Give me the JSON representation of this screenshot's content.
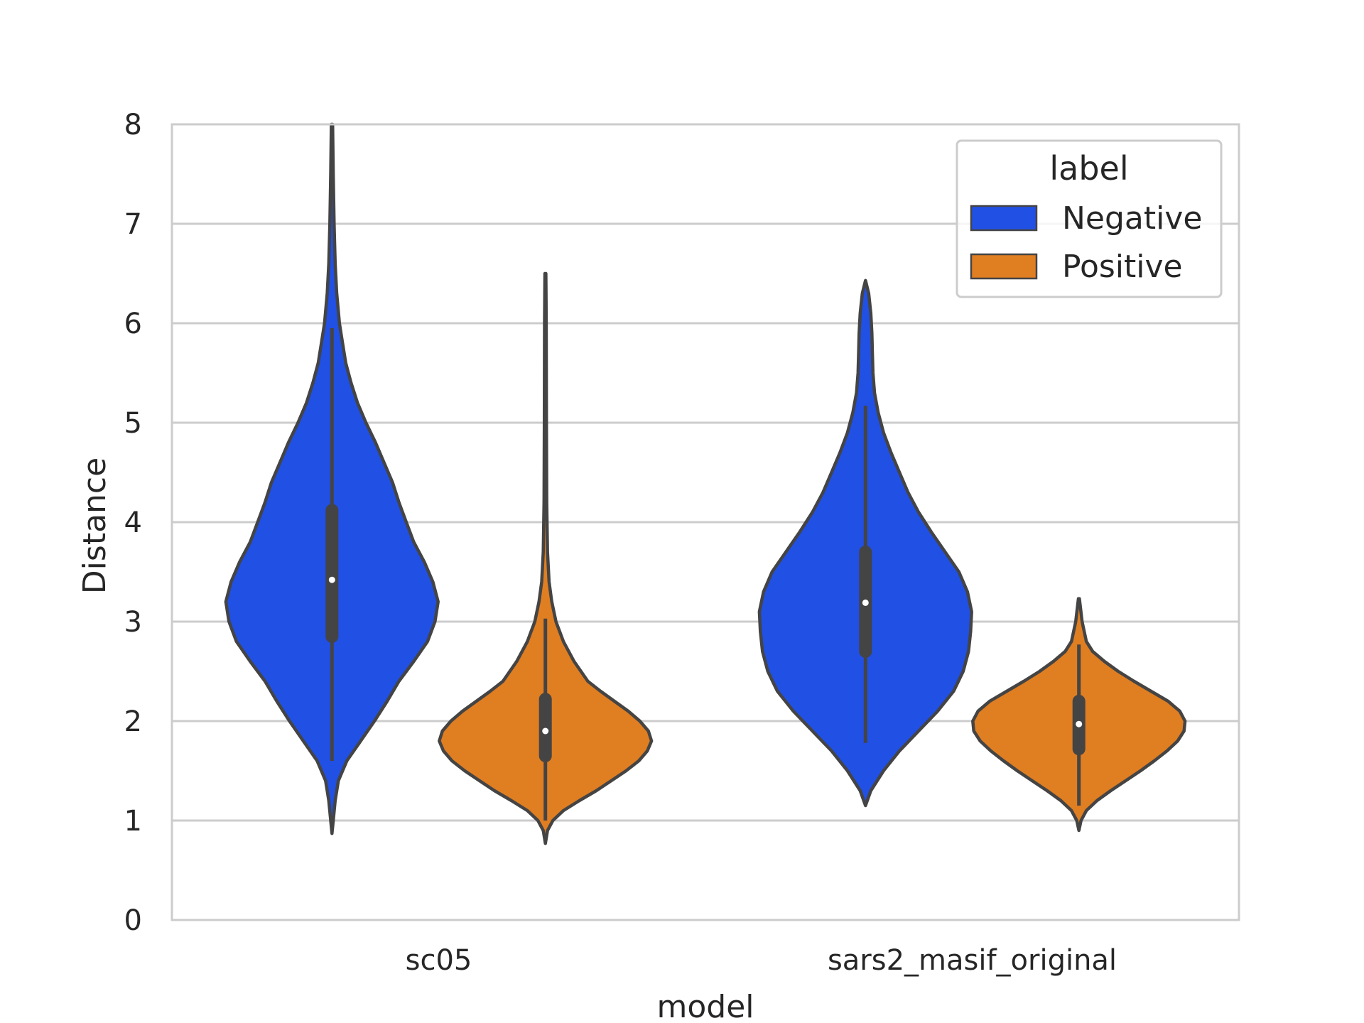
{
  "chart_data": {
    "type": "violin",
    "title": "",
    "xlabel": "model",
    "ylabel": "Distance",
    "ylim": [
      0,
      8
    ],
    "yticks": [
      "0",
      "1",
      "2",
      "3",
      "4",
      "5",
      "6",
      "7",
      "8"
    ],
    "categories": [
      "sc05",
      "sars2_masif_original"
    ],
    "grid": "horizontal",
    "legend": {
      "title": "label",
      "placement": "top-right",
      "entries": [
        {
          "name": "Negative",
          "color": "#2150e4"
        },
        {
          "name": "Positive",
          "color": "#e07e22"
        }
      ]
    },
    "series": [
      {
        "name": "Negative",
        "color": "#2150e4",
        "violins": [
          {
            "category": "sc05",
            "min": 0.87,
            "max": 8.0,
            "q1": 2.85,
            "median": 3.42,
            "q3": 4.12,
            "whisker_low": 1.6,
            "whisker_high": 5.95,
            "density": [
              [
                0.87,
                0.0
              ],
              [
                1.0,
                0.012
              ],
              [
                1.2,
                0.03
              ],
              [
                1.4,
                0.06
              ],
              [
                1.6,
                0.14
              ],
              [
                1.8,
                0.27
              ],
              [
                2.0,
                0.4
              ],
              [
                2.2,
                0.52
              ],
              [
                2.4,
                0.63
              ],
              [
                2.6,
                0.77
              ],
              [
                2.8,
                0.9
              ],
              [
                3.0,
                0.97
              ],
              [
                3.2,
                1.0
              ],
              [
                3.4,
                0.95
              ],
              [
                3.6,
                0.87
              ],
              [
                3.8,
                0.77
              ],
              [
                4.0,
                0.7
              ],
              [
                4.2,
                0.63
              ],
              [
                4.4,
                0.57
              ],
              [
                4.6,
                0.49
              ],
              [
                4.8,
                0.41
              ],
              [
                5.0,
                0.32
              ],
              [
                5.2,
                0.24
              ],
              [
                5.4,
                0.18
              ],
              [
                5.6,
                0.13
              ],
              [
                5.8,
                0.1
              ],
              [
                6.0,
                0.07
              ],
              [
                6.3,
                0.045
              ],
              [
                6.6,
                0.03
              ],
              [
                7.0,
                0.02
              ],
              [
                7.5,
                0.012
              ],
              [
                8.0,
                0.006
              ]
            ]
          },
          {
            "category": "sars2_masif_original",
            "min": 1.15,
            "max": 6.43,
            "q1": 2.7,
            "median": 3.19,
            "q3": 3.7,
            "whisker_low": 1.78,
            "whisker_high": 5.17,
            "density": [
              [
                1.15,
                0.0
              ],
              [
                1.3,
                0.05
              ],
              [
                1.5,
                0.17
              ],
              [
                1.7,
                0.32
              ],
              [
                1.9,
                0.5
              ],
              [
                2.1,
                0.68
              ],
              [
                2.3,
                0.83
              ],
              [
                2.5,
                0.92
              ],
              [
                2.7,
                0.97
              ],
              [
                2.9,
                0.99
              ],
              [
                3.1,
                1.0
              ],
              [
                3.3,
                0.96
              ],
              [
                3.5,
                0.88
              ],
              [
                3.7,
                0.75
              ],
              [
                3.9,
                0.62
              ],
              [
                4.1,
                0.5
              ],
              [
                4.3,
                0.4
              ],
              [
                4.5,
                0.32
              ],
              [
                4.7,
                0.24
              ],
              [
                4.9,
                0.17
              ],
              [
                5.1,
                0.12
              ],
              [
                5.3,
                0.085
              ],
              [
                5.5,
                0.07
              ],
              [
                5.7,
                0.065
              ],
              [
                5.9,
                0.06
              ],
              [
                6.1,
                0.05
              ],
              [
                6.3,
                0.03
              ],
              [
                6.43,
                0.0
              ]
            ]
          }
        ]
      },
      {
        "name": "Positive",
        "color": "#e07e22",
        "violins": [
          {
            "category": "sc05",
            "min": 0.77,
            "max": 6.5,
            "q1": 1.65,
            "median": 1.9,
            "q3": 2.22,
            "whisker_low": 1.0,
            "whisker_high": 3.03,
            "density": [
              [
                0.77,
                0.0
              ],
              [
                0.9,
                0.02
              ],
              [
                1.0,
                0.07
              ],
              [
                1.1,
                0.17
              ],
              [
                1.2,
                0.32
              ],
              [
                1.3,
                0.48
              ],
              [
                1.4,
                0.62
              ],
              [
                1.5,
                0.76
              ],
              [
                1.6,
                0.88
              ],
              [
                1.7,
                0.96
              ],
              [
                1.8,
                1.0
              ],
              [
                1.9,
                0.97
              ],
              [
                2.0,
                0.89
              ],
              [
                2.1,
                0.78
              ],
              [
                2.2,
                0.65
              ],
              [
                2.3,
                0.52
              ],
              [
                2.4,
                0.4
              ],
              [
                2.6,
                0.27
              ],
              [
                2.8,
                0.17
              ],
              [
                3.0,
                0.1
              ],
              [
                3.2,
                0.06
              ],
              [
                3.4,
                0.035
              ],
              [
                3.7,
                0.02
              ],
              [
                4.2,
                0.013
              ],
              [
                5.0,
                0.01
              ],
              [
                6.0,
                0.008
              ],
              [
                6.5,
                0.005
              ]
            ]
          },
          {
            "category": "sars2_masif_original",
            "min": 0.9,
            "max": 3.23,
            "q1": 1.72,
            "median": 1.97,
            "q3": 2.2,
            "whisker_low": 1.15,
            "whisker_high": 2.77,
            "density": [
              [
                0.9,
                0.0
              ],
              [
                1.0,
                0.02
              ],
              [
                1.1,
                0.07
              ],
              [
                1.2,
                0.17
              ],
              [
                1.3,
                0.3
              ],
              [
                1.4,
                0.44
              ],
              [
                1.5,
                0.58
              ],
              [
                1.6,
                0.71
              ],
              [
                1.7,
                0.83
              ],
              [
                1.8,
                0.93
              ],
              [
                1.9,
                0.99
              ],
              [
                2.0,
                1.0
              ],
              [
                2.1,
                0.95
              ],
              [
                2.2,
                0.84
              ],
              [
                2.3,
                0.68
              ],
              [
                2.4,
                0.52
              ],
              [
                2.5,
                0.37
              ],
              [
                2.6,
                0.24
              ],
              [
                2.7,
                0.13
              ],
              [
                2.8,
                0.07
              ],
              [
                3.0,
                0.03
              ],
              [
                3.23,
                0.005
              ]
            ]
          }
        ]
      }
    ]
  }
}
